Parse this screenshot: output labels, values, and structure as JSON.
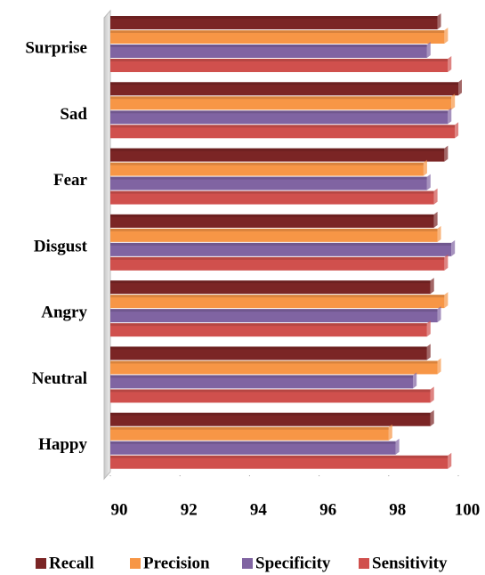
{
  "chart_data": {
    "type": "bar",
    "orientation": "horizontal",
    "categories": [
      "Happy",
      "Neutral",
      "Angry",
      "Disgust",
      "Fear",
      "Sad",
      "Surprise"
    ],
    "series": [
      {
        "name": "Recall",
        "color": "#7b2525",
        "values": [
          99.2,
          99.1,
          99.2,
          99.3,
          99.6,
          100.0,
          99.4
        ]
      },
      {
        "name": "Precision",
        "color": "#f79646",
        "values": [
          98.0,
          99.4,
          99.6,
          99.4,
          99.0,
          99.8,
          99.6
        ]
      },
      {
        "name": "Specificity",
        "color": "#8064a2",
        "values": [
          98.2,
          98.7,
          99.4,
          99.8,
          99.1,
          99.7,
          99.1
        ]
      },
      {
        "name": "Sensitivity",
        "color": "#d0504d",
        "values": [
          99.7,
          99.2,
          99.1,
          99.6,
          99.3,
          99.9,
          99.7
        ]
      }
    ],
    "xlim": [
      90,
      100
    ],
    "xticks": [
      90,
      92,
      94,
      96,
      98,
      100
    ],
    "legend": "bottom"
  }
}
